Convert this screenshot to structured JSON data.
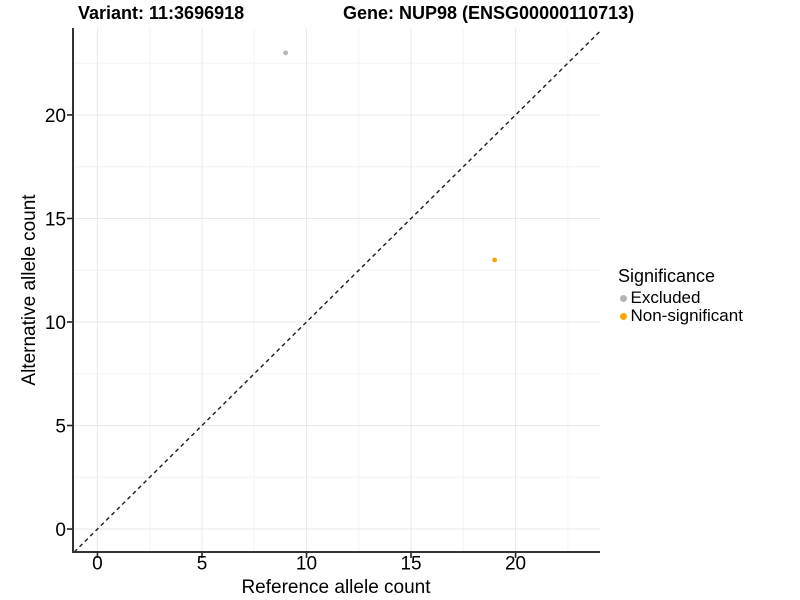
{
  "chart_data": {
    "type": "scatter",
    "titles": [
      {
        "text": "Variant: 11:3696918"
      },
      {
        "text": "Gene: NUP98 (ENSG00000110713)"
      }
    ],
    "xlabel": "Reference allele count",
    "ylabel": "Alternative allele count",
    "xlim": [
      -1.17,
      24.04
    ],
    "ylim": [
      -1.11,
      24.2
    ],
    "x_major_ticks": [
      0,
      5,
      10,
      15,
      20
    ],
    "x_minor_ticks": [
      2.5,
      7.5,
      12.5,
      17.5,
      22.5
    ],
    "y_major_ticks": [
      0,
      5,
      10,
      15,
      20
    ],
    "y_minor_ticks": [
      2.5,
      7.5,
      12.5,
      17.5,
      22.5
    ],
    "grid": true,
    "identity_line": {
      "style": "dashed",
      "color": "#1A1A1A",
      "from": [
        -1.11,
        -1.11
      ],
      "to": [
        24.04,
        24.04
      ]
    },
    "series": [
      {
        "name": "Excluded",
        "color": "#B4B4B4",
        "points": [
          [
            9,
            23
          ]
        ]
      },
      {
        "name": "Non-significant",
        "color": "#FFA500",
        "points": [
          [
            19,
            13
          ]
        ]
      }
    ],
    "legend": {
      "title": "Significance",
      "position": "right"
    },
    "colors": {
      "grid_major": "#E9E9E9",
      "grid_minor": "#F4F4F4",
      "axis_line": "#333333",
      "tick_mark": "#222222",
      "tick_text": "#000000"
    }
  }
}
